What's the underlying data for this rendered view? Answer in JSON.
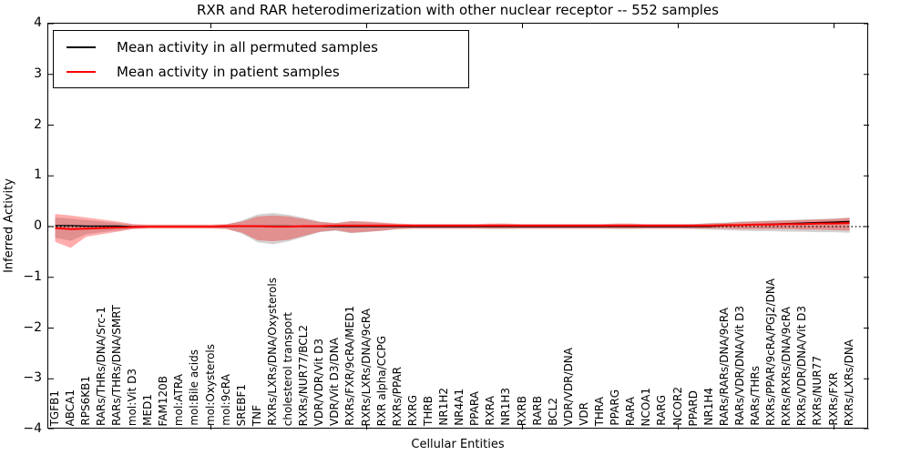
{
  "chart": {
    "title": "RXR and RAR heterodimerization with other nuclear receptor -- 552 samples",
    "xlabel": "Cellular Entities",
    "ylabel": "Inferred Activity"
  },
  "chart_data": {
    "type": "line",
    "title": "RXR and RAR heterodimerization with other nuclear receptor -- 552 samples",
    "xlabel": "Cellular Entities",
    "ylabel": "Inferred Activity",
    "ylim": [
      -4,
      4
    ],
    "yticks": [
      4,
      3,
      2,
      1,
      0,
      -1,
      -2,
      -3,
      -4
    ],
    "ytick_labels": [
      "4",
      "3",
      "2",
      "1",
      "0",
      "−1",
      "−2",
      "−3",
      "−4"
    ],
    "xticks": [
      10,
      20,
      30,
      40,
      50
    ],
    "grid": false,
    "legend_position": "upper left",
    "zero_line": {
      "value": 0,
      "style": "dotted",
      "color": "#000000"
    },
    "categories": [
      "TGFB1",
      "ABCA1",
      "RPS6KB1",
      "RARs/THRs/DNA/Src-1",
      "RARs/THRs/DNA/SMRT",
      "mol:Vit D3",
      "MED1",
      "FAM120B",
      "mol:ATRA",
      "mol:Bile acids",
      "mol:Oxysterols",
      "mol:9cRA",
      "SREBF1",
      "TNF",
      "RXRs/LXRs/DNA/Oxysterols",
      "cholesterol transport",
      "RXRs/NUR77/BCL2",
      "VDR/VDR/Vit D3",
      "VDR/Vit D3/DNA",
      "RXRs/FXR/9cRA/MED1",
      "RXRs/LXRs/DNA/9cRA",
      "RXR alpha/CCPG",
      "RXRs/PPAR",
      "RXRG",
      "THRB",
      "NR1H2",
      "NR4A1",
      "PPARA",
      "RXRA",
      "NR1H3",
      "RXRB",
      "RARB",
      "BCL2",
      "VDR/VDR/DNA",
      "VDR",
      "THRA",
      "PPARG",
      "RARA",
      "NCOA1",
      "RARG",
      "NCOR2",
      "PPARD",
      "NR1H4",
      "RARs/RARs/DNA/9cRA",
      "RARs/VDR/DNA/Vit D3",
      "RARs/THRs",
      "RXRs/PPAR/9cRA/PGJ2/DNA",
      "RXRs/RXRs/DNA/9cRA",
      "RXRs/VDR/DNA/Vit D3",
      "RXRs/NUR77",
      "RXRs/FXR",
      "RXRs/LXRs/DNA"
    ],
    "series": [
      {
        "name": "Mean activity in all permuted samples",
        "color": "#000000",
        "style": "solid",
        "values": [
          0.02,
          0.02,
          0.01,
          0.01,
          0.01,
          0,
          0,
          0,
          0,
          0,
          0,
          0,
          0.01,
          0.01,
          0.01,
          0.01,
          0,
          0,
          0,
          0,
          0,
          0,
          0,
          0,
          0,
          0,
          0,
          0,
          0,
          0,
          0,
          0,
          0,
          0,
          0,
          0,
          0,
          0,
          0,
          0,
          0,
          0,
          0,
          0.02,
          0.03,
          0.04,
          0.05,
          0.06,
          0.07,
          0.08,
          0.09,
          0.1
        ]
      },
      {
        "name": "Mean activity in patient samples",
        "color": "#ff0000",
        "style": "solid",
        "values": [
          -0.03,
          -0.05,
          -0.04,
          -0.03,
          -0.02,
          -0.01,
          0,
          0,
          0,
          0,
          0,
          0.01,
          0.01,
          0.01,
          0,
          0,
          0.01,
          0.01,
          0.02,
          0.02,
          0.02,
          0.02,
          0.02,
          0.02,
          0.02,
          0.02,
          0.02,
          0.02,
          0.02,
          0.02,
          0.02,
          0.02,
          0.02,
          0.02,
          0.02,
          0.02,
          0.02,
          0.02,
          0.02,
          0.02,
          0.02,
          0.02,
          0.02,
          0.03,
          0.03,
          0.04,
          0.04,
          0.05,
          0.05,
          0.06,
          0.06,
          0.07
        ]
      }
    ],
    "bands": [
      {
        "name": "permuted-samples-std-band",
        "color": "#808080",
        "opacity": 0.35,
        "upper": [
          0.18,
          0.16,
          0.13,
          0.1,
          0.07,
          0.04,
          0.03,
          0.03,
          0.03,
          0.03,
          0.03,
          0.04,
          0.12,
          0.24,
          0.27,
          0.23,
          0.17,
          0.1,
          0.07,
          0.1,
          0.09,
          0.07,
          0.05,
          0.04,
          0.04,
          0.04,
          0.04,
          0.04,
          0.05,
          0.05,
          0.04,
          0.04,
          0.04,
          0.04,
          0.04,
          0.04,
          0.05,
          0.05,
          0.04,
          0.04,
          0.04,
          0.05,
          0.07,
          0.08,
          0.1,
          0.11,
          0.12,
          0.13,
          0.14,
          0.15,
          0.16,
          0.18
        ],
        "lower": [
          -0.22,
          -0.28,
          -0.15,
          -0.11,
          -0.08,
          -0.04,
          -0.03,
          -0.03,
          -0.03,
          -0.03,
          -0.03,
          -0.04,
          -0.14,
          -0.31,
          -0.35,
          -0.29,
          -0.2,
          -0.11,
          -0.08,
          -0.13,
          -0.11,
          -0.08,
          -0.05,
          -0.04,
          -0.04,
          -0.04,
          -0.04,
          -0.04,
          -0.05,
          -0.05,
          -0.04,
          -0.04,
          -0.04,
          -0.04,
          -0.04,
          -0.04,
          -0.05,
          -0.05,
          -0.04,
          -0.04,
          -0.04,
          -0.05,
          -0.06,
          -0.07,
          -0.08,
          -0.09,
          -0.09,
          -0.1,
          -0.1,
          -0.11,
          -0.11,
          -0.12
        ]
      },
      {
        "name": "patient-samples-std-band",
        "color": "#ff0000",
        "opacity": 0.32,
        "upper": [
          0.25,
          0.22,
          0.18,
          0.14,
          0.1,
          0.05,
          0.04,
          0.04,
          0.04,
          0.04,
          0.04,
          0.05,
          0.1,
          0.2,
          0.22,
          0.2,
          0.15,
          0.09,
          0.07,
          0.11,
          0.1,
          0.08,
          0.06,
          0.05,
          0.05,
          0.05,
          0.05,
          0.05,
          0.06,
          0.06,
          0.05,
          0.05,
          0.05,
          0.05,
          0.05,
          0.05,
          0.06,
          0.06,
          0.05,
          0.05,
          0.05,
          0.05,
          0.06,
          0.07,
          0.09,
          0.1,
          0.11,
          0.12,
          0.13,
          0.14,
          0.15,
          0.17
        ],
        "lower": [
          -0.3,
          -0.42,
          -0.2,
          -0.15,
          -0.1,
          -0.05,
          -0.04,
          -0.04,
          -0.04,
          -0.04,
          -0.04,
          -0.05,
          -0.12,
          -0.27,
          -0.29,
          -0.26,
          -0.18,
          -0.1,
          -0.07,
          -0.12,
          -0.1,
          -0.08,
          -0.05,
          -0.04,
          -0.04,
          -0.04,
          -0.04,
          -0.04,
          -0.04,
          -0.04,
          -0.04,
          -0.04,
          -0.04,
          -0.04,
          -0.04,
          -0.04,
          -0.04,
          -0.04,
          -0.04,
          -0.04,
          -0.04,
          -0.04,
          -0.04,
          -0.04,
          -0.05,
          -0.05,
          -0.05,
          -0.05,
          -0.06,
          -0.06,
          -0.07,
          -0.08
        ]
      }
    ]
  }
}
